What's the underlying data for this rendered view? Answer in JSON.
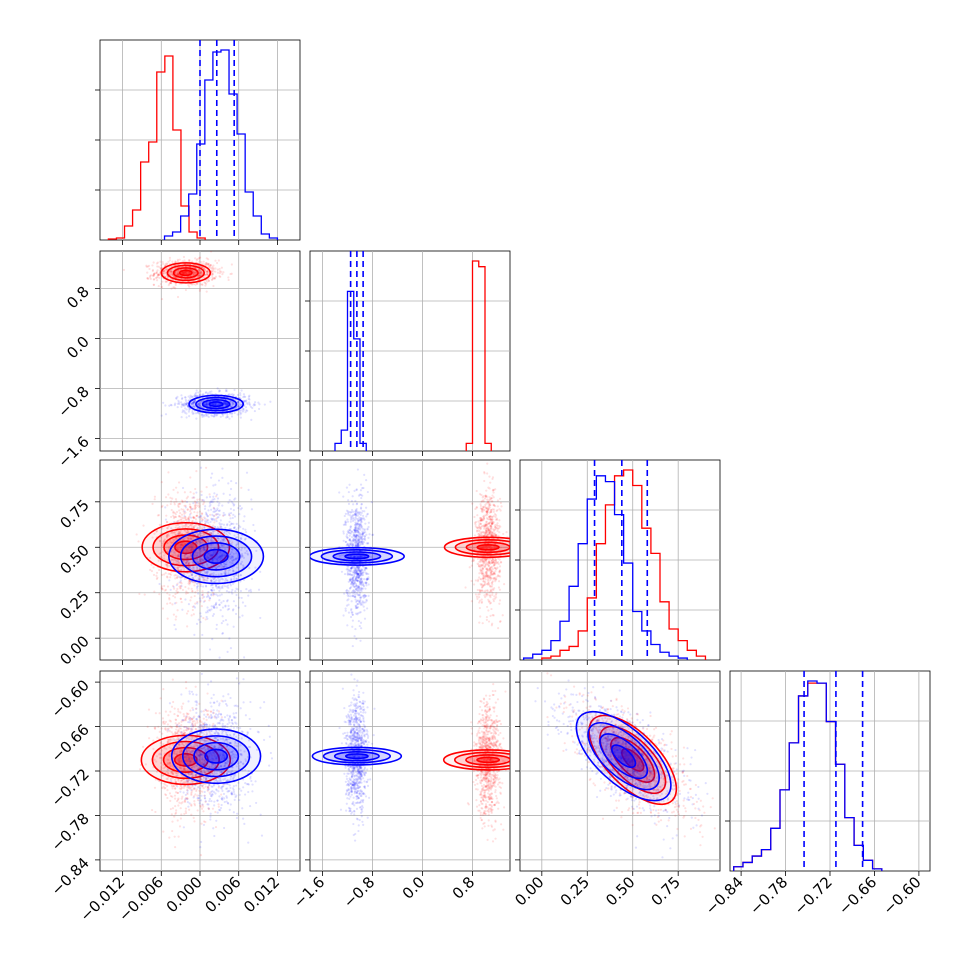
{
  "chart_data": {
    "type": "corner",
    "parameters": 4,
    "grid": true,
    "colors": {
      "series_a": "#ff0000",
      "series_b": "#0000ff",
      "overlap": "#ff0000"
    },
    "axes": {
      "p0": {
        "range": [
          -0.0155,
          0.0155
        ],
        "ticks": [
          -0.012,
          -0.006,
          0.0,
          0.006,
          0.012
        ],
        "tick_labels": [
          "−0.012",
          "−0.006",
          "0.000",
          "0.006",
          "0.012"
        ]
      },
      "p1": {
        "range": [
          -1.8,
          1.4
        ],
        "ticks": [
          -1.6,
          -0.8,
          0.0,
          0.8
        ],
        "tick_labels": [
          "−1.6",
          "−0.8",
          "0.0",
          "0.8"
        ]
      },
      "p2": {
        "range": [
          -0.12,
          0.98
        ],
        "ticks": [
          0.0,
          0.25,
          0.5,
          0.75
        ],
        "tick_labels": [
          "0.00",
          "0.25",
          "0.50",
          "0.75"
        ]
      },
      "p3": {
        "range": [
          -0.855,
          -0.585
        ],
        "ticks": [
          -0.84,
          -0.78,
          -0.72,
          -0.66,
          -0.6
        ],
        "tick_labels": [
          "−0.84",
          "−0.78",
          "−0.72",
          "−0.66",
          "−0.60"
        ]
      }
    },
    "series": [
      {
        "name": "",
        "color": "#ff0000",
        "mean": [
          -0.0022,
          1.05,
          0.5,
          -0.705
        ],
        "sd": [
          0.0019,
          0.08,
          0.12,
          0.03
        ],
        "corr": {
          "2-3": -0.65
        },
        "hist": {
          "p0": {
            "start": -0.0142,
            "bin_width": 0.00125,
            "counts": [
              0.5,
              1,
              7,
              15,
              39,
              49,
              84,
              92,
              55,
              17,
              4,
              1
            ]
          },
          "p1": {
            "start": 0.7,
            "bin_width": 0.1,
            "counts": [
              4,
              100,
              97,
              4
            ]
          },
          "p2": {
            "start": 0.0,
            "bin_width": 0.05,
            "counts": [
              1,
              2,
              5,
              7,
              15,
              32,
              60,
              80,
              95,
              98,
              90,
              68,
              55,
              30,
              16,
              10,
              5,
              2
            ]
          },
          "p3": {
            "start": -0.85,
            "bin_width": 0.0125,
            "counts": [
              2,
              4,
              7,
              10,
              20,
              38,
              60,
              82,
              88,
              88,
              70,
              50,
              25,
              12,
              5,
              1
            ]
          }
        }
      },
      {
        "name": "",
        "color": "#0000ff",
        "mean": [
          0.0025,
          -1.05,
          0.45,
          -0.7
        ],
        "sd": [
          0.0021,
          0.07,
          0.13,
          0.03
        ],
        "corr": {
          "2-3": -0.65
        },
        "hist": {
          "p0": {
            "start": -0.0055,
            "bin_width": 0.00125,
            "counts": [
              2,
              4,
              12,
              23,
              48,
              80,
              94,
              95,
              73,
              53,
              24,
              12,
              3,
              1
            ]
          },
          "p1": {
            "start": -1.4,
            "bin_width": 0.1,
            "counts": [
              4,
              11,
              84,
              59,
              4
            ]
          },
          "p2": {
            "start": -0.1,
            "bin_width": 0.05,
            "counts": [
              1,
              3,
              5,
              10,
              20,
              38,
              60,
              83,
              95,
              92,
              75,
              50,
              25,
              15,
              8,
              4,
              2,
              1
            ]
          },
          "p3": {
            "start": -0.85,
            "bin_width": 0.0125,
            "counts": [
              2,
              4,
              7,
              10,
              20,
              38,
              60,
              82,
              89,
              88,
              70,
              50,
              25,
              12,
              5,
              1
            ]
          }
        }
      }
    ],
    "quantile_lines": {
      "color": "#0000ff",
      "style": "dashed",
      "p0": [
        0.0,
        0.0026,
        0.0053
      ],
      "p1": [
        -1.15,
        -1.05,
        -0.95
      ],
      "p2": [
        0.29,
        0.44,
        0.58
      ],
      "p3": [
        -0.755,
        -0.712,
        -0.676
      ]
    }
  }
}
